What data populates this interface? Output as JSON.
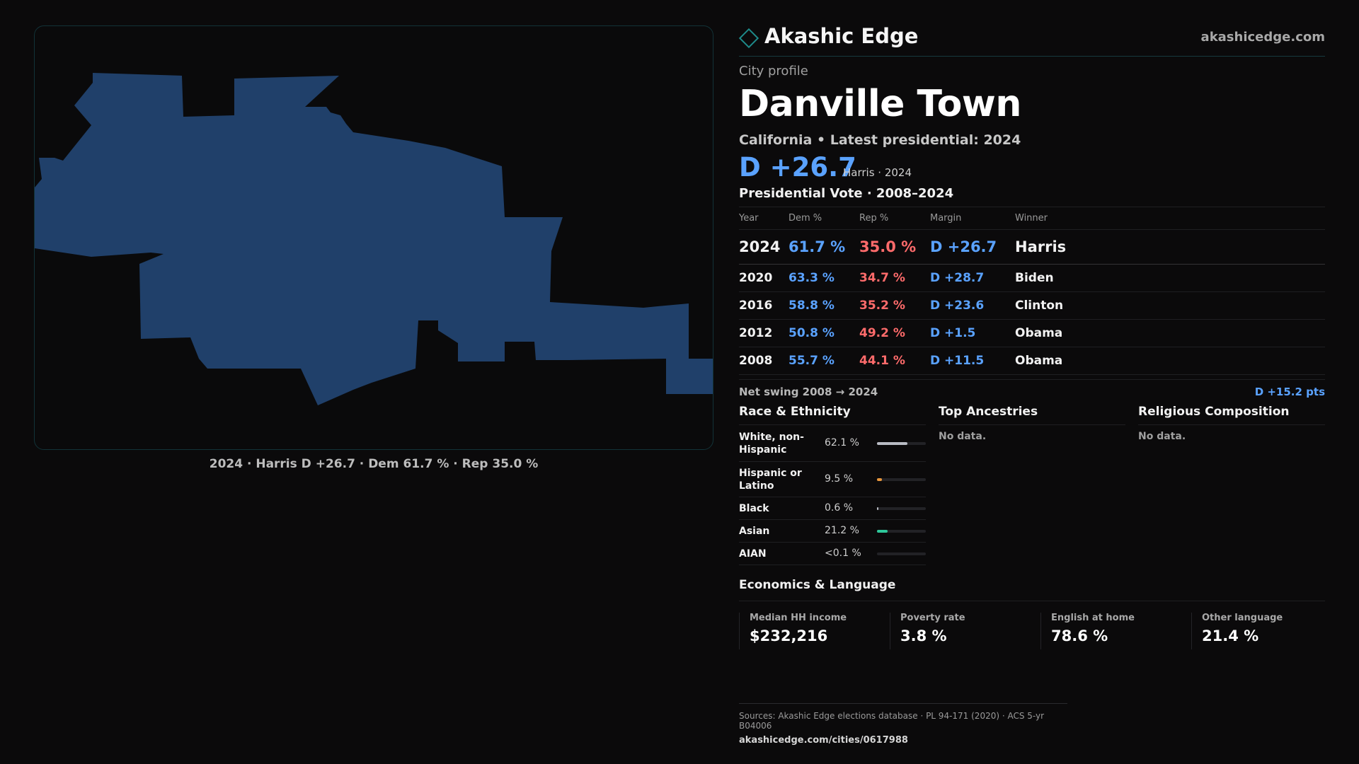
{
  "brand": {
    "name": "Akashic Edge",
    "url": "akashicedge.com",
    "icon": "diamond-logo-icon"
  },
  "profile": {
    "eyebrow": "City profile",
    "city": "Danville Town",
    "subtitle": "California • Latest presidential: 2024",
    "headline_margin": "D +26.7",
    "headline_meta": "Harris · 2024"
  },
  "map": {
    "caption": "2024 · Harris D +26.7 · Dem 61.7 % · Rep 35.0 %",
    "fill": "#20406a"
  },
  "presidential": {
    "title": "Presidential Vote · 2008–2024",
    "columns": [
      "Year",
      "Dem %",
      "Rep %",
      "Margin",
      "Winner"
    ],
    "rows": [
      {
        "year": "2024",
        "dem": "61.7 %",
        "rep": "35.0 %",
        "margin": "D +26.7",
        "winner": "Harris"
      },
      {
        "year": "2020",
        "dem": "63.3 %",
        "rep": "34.7 %",
        "margin": "D +28.7",
        "winner": "Biden"
      },
      {
        "year": "2016",
        "dem": "58.8 %",
        "rep": "35.2 %",
        "margin": "D +23.6",
        "winner": "Clinton"
      },
      {
        "year": "2012",
        "dem": "50.8 %",
        "rep": "49.2 %",
        "margin": "D +1.5",
        "winner": "Obama"
      },
      {
        "year": "2008",
        "dem": "55.7 %",
        "rep": "44.1 %",
        "margin": "D +11.5",
        "winner": "Obama"
      }
    ],
    "swing_label": "Net swing 2008 → 2024",
    "swing_value": "D +15.2 pts"
  },
  "colors": {
    "dem": "#5aa2ff",
    "rep": "#ff6b6b",
    "accent": "#1e8a8a"
  },
  "race": {
    "title": "Race & Ethnicity",
    "items": [
      {
        "name": "White, non-Hispanic",
        "value": "62.1 %",
        "share": 0.621,
        "color": "#b9bcc4"
      },
      {
        "name": "Hispanic or Latino",
        "value": "9.5 %",
        "share": 0.095,
        "color": "#e8963c"
      },
      {
        "name": "Black",
        "value": "0.6 %",
        "share": 0.006,
        "color": "#b9bcc4"
      },
      {
        "name": "Asian",
        "value": "21.2 %",
        "share": 0.212,
        "color": "#2ec79a"
      },
      {
        "name": "AIAN",
        "value": "<0.1 %",
        "share": 0.0,
        "color": "#b9bcc4"
      }
    ]
  },
  "ancestries": {
    "title": "Top Ancestries",
    "empty": "No data."
  },
  "religion": {
    "title": "Religious Composition",
    "empty": "No data."
  },
  "economics": {
    "title": "Economics & Language",
    "items": [
      {
        "label": "Median HH income",
        "value": "$232,216"
      },
      {
        "label": "Poverty rate",
        "value": "3.8 %"
      },
      {
        "label": "English at home",
        "value": "78.6 %"
      },
      {
        "label": "Other language",
        "value": "21.4 %"
      }
    ]
  },
  "sources": {
    "text": "Sources: Akashic Edge elections database · PL 94-171 (2020) · ACS 5-yr B04006",
    "url": "akashicedge.com/cities/0617988"
  }
}
